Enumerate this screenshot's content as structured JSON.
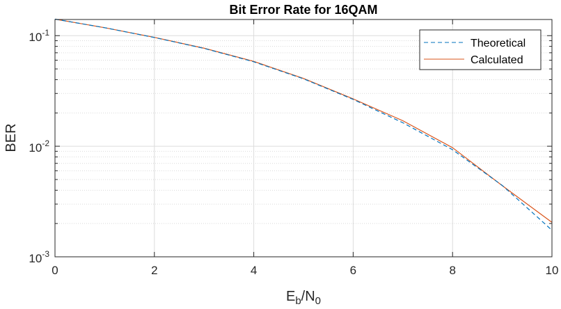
{
  "chart_data": {
    "type": "line",
    "title": "Bit Error Rate for 16QAM",
    "xlabel": {
      "base": "E",
      "sub1": "b",
      "mid": "/N",
      "sub2": "0"
    },
    "ylabel": "BER",
    "xlim": [
      0,
      10
    ],
    "ylim": [
      0.001,
      0.14
    ],
    "yscale": "log",
    "grid": true,
    "minor_grid_y": true,
    "legend_position": "top-right",
    "x_ticks": [
      "0",
      "2",
      "4",
      "6",
      "8",
      "10"
    ],
    "y_ticks": [
      {
        "value": 0.001,
        "base": "10",
        "exp": "-3"
      },
      {
        "value": 0.01,
        "base": "10",
        "exp": "-2"
      },
      {
        "value": 0.1,
        "base": "10",
        "exp": "-1"
      }
    ],
    "x": [
      0,
      1,
      2,
      3,
      4,
      5,
      6,
      7,
      8,
      9,
      10
    ],
    "series": [
      {
        "name": "Theoretical",
        "style": "dashed",
        "color": "#0072BD",
        "values": [
          0.141,
          0.118,
          0.0962,
          0.0767,
          0.058,
          0.0407,
          0.0265,
          0.0163,
          0.0093,
          0.00442,
          0.00174
        ]
      },
      {
        "name": "Calculated",
        "style": "solid",
        "color": "#D95319",
        "values": [
          0.141,
          0.118,
          0.0965,
          0.077,
          0.0585,
          0.041,
          0.0268,
          0.017,
          0.0097,
          0.0044,
          0.00205
        ]
      }
    ]
  }
}
